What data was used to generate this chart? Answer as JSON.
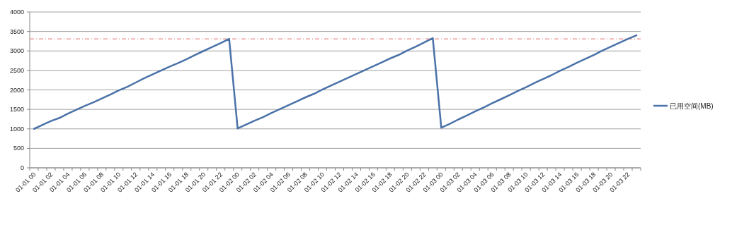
{
  "chart_data": {
    "type": "line",
    "categories": [
      "01-01 00",
      null,
      "01-01 02",
      null,
      "01-01 04",
      null,
      "01-01 06",
      null,
      "01-01 08",
      null,
      "01-01 10",
      null,
      "01-01 12",
      null,
      "01-01 14",
      null,
      "01-01 16",
      null,
      "01-01 18",
      null,
      "01-01 20",
      null,
      "01-01 22",
      null,
      "01-02 00",
      null,
      "01-02 02",
      null,
      "01-02 04",
      null,
      "01-02 06",
      null,
      "01-02 08",
      null,
      "01-02 10",
      null,
      "01-02 12",
      null,
      "01-02 14",
      null,
      "01-02 16",
      null,
      "01-02 18",
      null,
      "01-02 20",
      null,
      "01-02 22",
      null,
      "01-03 00",
      null,
      "01-03 02",
      null,
      "01-03 04",
      null,
      "01-03 06",
      null,
      "01-03 08",
      null,
      "01-03 10",
      null,
      "01-03 12",
      null,
      "01-03 14",
      null,
      "01-03 16",
      null,
      "01-03 18",
      null,
      "01-03 20",
      null,
      "01-03 22",
      null
    ],
    "series": [
      {
        "name": "已用空间(MB)",
        "color": "#4a72a8",
        "values": [
          1000,
          1100,
          1200,
          1280,
          1390,
          1490,
          1590,
          1680,
          1780,
          1880,
          1990,
          2080,
          2190,
          2300,
          2400,
          2500,
          2600,
          2690,
          2790,
          2900,
          3000,
          3100,
          3200,
          3310,
          1010,
          1110,
          1210,
          1300,
          1410,
          1510,
          1610,
          1710,
          1810,
          1900,
          2010,
          2110,
          2210,
          2310,
          2410,
          2510,
          2610,
          2710,
          2810,
          2900,
          3010,
          3110,
          3220,
          3330,
          1030,
          1130,
          1240,
          1340,
          1450,
          1550,
          1660,
          1760,
          1860,
          1970,
          2070,
          2180,
          2280,
          2380,
          2490,
          2590,
          2700,
          2800,
          2900,
          3010,
          3110,
          3210,
          3310,
          3400
        ]
      }
    ],
    "ylim": [
      0,
      4000
    ],
    "yticks": [
      0,
      500,
      1000,
      1500,
      2000,
      2500,
      3000,
      3500,
      4000
    ],
    "grid": "y",
    "legend": "right",
    "marker": "none",
    "line_style": "solid",
    "ref_lines": [
      {
        "axis": "y",
        "value": 3310,
        "color": "#e07070",
        "line_style": "dashed"
      }
    ]
  }
}
